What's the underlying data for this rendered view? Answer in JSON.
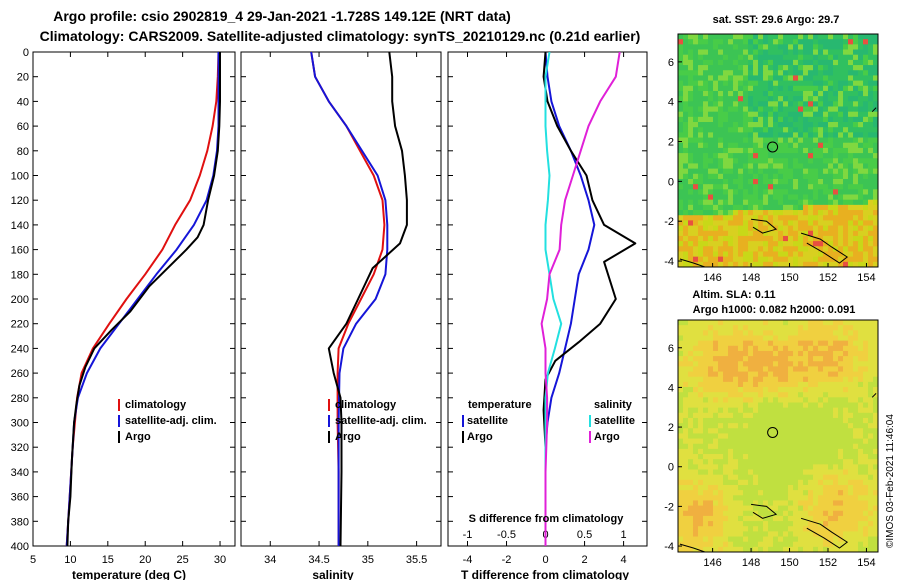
{
  "header": {
    "line1": "Argo profile: csio 2902819_4 29-Jan-2021 -1.728S 149.12E (NRT data)",
    "line2": "Climatology: CARS2009. Satellite-adjusted climatology: synTS_20210129.nc (0.21d earlier)"
  },
  "watermark": "©IMOS 03-Feb-2021 11:46:04",
  "colors": {
    "climatology": "#e01010",
    "satellite": "#1515d8",
    "argo": "#000000",
    "sal_satellite": "#22e0e0",
    "sal_argo": "#e020d8"
  },
  "chart_data": [
    {
      "id": "temperature",
      "type": "line",
      "xlabel": "temperature (deg C)",
      "ylabel": "",
      "xlim": [
        5,
        32
      ],
      "ylim": [
        400,
        0
      ],
      "xticks": [
        5,
        10,
        15,
        20,
        25,
        30
      ],
      "yticks": [
        0,
        20,
        40,
        60,
        80,
        100,
        120,
        140,
        160,
        180,
        200,
        220,
        240,
        260,
        280,
        300,
        320,
        340,
        360,
        380,
        400
      ],
      "legend": [
        "climatology",
        "satellite-adj. clim.",
        "Argo"
      ],
      "series": [
        {
          "name": "climatology",
          "color": "climatology",
          "points": [
            [
              29.8,
              0
            ],
            [
              29.7,
              20
            ],
            [
              29.5,
              40
            ],
            [
              29.0,
              60
            ],
            [
              28.3,
              80
            ],
            [
              27.3,
              100
            ],
            [
              26.0,
              120
            ],
            [
              24.0,
              140
            ],
            [
              22.3,
              160
            ],
            [
              20.0,
              180
            ],
            [
              17.5,
              200
            ],
            [
              15.2,
              220
            ],
            [
              13.0,
              240
            ],
            [
              11.5,
              260
            ],
            [
              10.9,
              280
            ],
            [
              10.6,
              300
            ],
            [
              10.3,
              320
            ],
            [
              10.1,
              340
            ],
            [
              9.9,
              360
            ],
            [
              9.7,
              380
            ],
            [
              9.5,
              400
            ]
          ]
        },
        {
          "name": "satellite-adj. clim.",
          "color": "satellite",
          "points": [
            [
              29.8,
              0
            ],
            [
              29.8,
              20
            ],
            [
              29.8,
              40
            ],
            [
              29.8,
              60
            ],
            [
              29.6,
              80
            ],
            [
              29.1,
              100
            ],
            [
              28.2,
              120
            ],
            [
              26.5,
              140
            ],
            [
              24.2,
              160
            ],
            [
              21.5,
              180
            ],
            [
              19.0,
              200
            ],
            [
              16.5,
              220
            ],
            [
              14.0,
              240
            ],
            [
              12.2,
              260
            ],
            [
              11.0,
              280
            ],
            [
              10.5,
              300
            ],
            [
              10.3,
              320
            ],
            [
              10.1,
              340
            ],
            [
              9.9,
              360
            ],
            [
              9.7,
              380
            ],
            [
              9.5,
              400
            ]
          ]
        },
        {
          "name": "Argo",
          "color": "argo",
          "points": [
            [
              30.0,
              0
            ],
            [
              30.0,
              20
            ],
            [
              30.0,
              40
            ],
            [
              29.9,
              60
            ],
            [
              29.7,
              80
            ],
            [
              29.2,
              100
            ],
            [
              28.4,
              120
            ],
            [
              27.8,
              140
            ],
            [
              27.0,
              150
            ],
            [
              25.5,
              160
            ],
            [
              23.0,
              175
            ],
            [
              20.5,
              190
            ],
            [
              18.0,
              210
            ],
            [
              15.5,
              225
            ],
            [
              13.2,
              240
            ],
            [
              12.0,
              255
            ],
            [
              11.2,
              270
            ],
            [
              10.8,
              285
            ],
            [
              10.5,
              300
            ],
            [
              10.2,
              330
            ],
            [
              10.0,
              360
            ],
            [
              9.7,
              380
            ],
            [
              9.6,
              400
            ]
          ]
        }
      ]
    },
    {
      "id": "salinity",
      "type": "line",
      "xlabel": "salinity",
      "ylabel": "",
      "xlim": [
        33.7,
        35.75
      ],
      "ylim": [
        400,
        0
      ],
      "xticks": [
        34,
        34.5,
        35,
        35.5
      ],
      "xticklabels": [
        "34",
        "34.5",
        "35",
        "35.5"
      ],
      "legend": [
        "climatology",
        "satellite-adj. clim.",
        "Argo"
      ],
      "series": [
        {
          "name": "climatology",
          "color": "climatology",
          "points": [
            [
              34.42,
              0
            ],
            [
              34.46,
              20
            ],
            [
              34.6,
              40
            ],
            [
              34.78,
              60
            ],
            [
              34.92,
              80
            ],
            [
              35.06,
              100
            ],
            [
              35.15,
              120
            ],
            [
              35.17,
              140
            ],
            [
              35.15,
              160
            ],
            [
              35.06,
              180
            ],
            [
              34.93,
              200
            ],
            [
              34.8,
              220
            ],
            [
              34.7,
              240
            ],
            [
              34.69,
              260
            ],
            [
              34.69,
              300
            ],
            [
              34.7,
              340
            ],
            [
              34.7,
              400
            ]
          ]
        },
        {
          "name": "satellite-adj. clim.",
          "color": "satellite",
          "points": [
            [
              34.42,
              0
            ],
            [
              34.46,
              20
            ],
            [
              34.6,
              40
            ],
            [
              34.78,
              60
            ],
            [
              34.94,
              80
            ],
            [
              35.1,
              100
            ],
            [
              35.18,
              120
            ],
            [
              35.2,
              140
            ],
            [
              35.2,
              160
            ],
            [
              35.18,
              180
            ],
            [
              35.08,
              200
            ],
            [
              34.88,
              220
            ],
            [
              34.75,
              240
            ],
            [
              34.71,
              260
            ],
            [
              34.7,
              300
            ],
            [
              34.7,
              340
            ],
            [
              34.7,
              400
            ]
          ]
        },
        {
          "name": "Argo",
          "color": "argo",
          "points": [
            [
              35.22,
              0
            ],
            [
              35.25,
              20
            ],
            [
              35.25,
              40
            ],
            [
              35.28,
              60
            ],
            [
              35.35,
              80
            ],
            [
              35.38,
              100
            ],
            [
              35.4,
              120
            ],
            [
              35.4,
              140
            ],
            [
              35.33,
              155
            ],
            [
              35.05,
              175
            ],
            [
              34.9,
              200
            ],
            [
              34.78,
              220
            ],
            [
              34.6,
              240
            ],
            [
              34.65,
              260
            ],
            [
              34.72,
              280
            ],
            [
              34.73,
              300
            ],
            [
              34.73,
              340
            ],
            [
              34.72,
              400
            ]
          ]
        }
      ]
    },
    {
      "id": "difference",
      "type": "line",
      "xlabel": "T difference from climatology",
      "top_label": "S difference from climatology",
      "ylabel": "",
      "xlim": [
        -5,
        5.2
      ],
      "ylim": [
        400,
        0
      ],
      "xticks": [
        -4,
        -2,
        0,
        2,
        4
      ],
      "xticklabels": [
        "-4",
        "-2",
        "0",
        "2",
        "4"
      ],
      "s_ticks": [
        -1,
        -0.5,
        0,
        0.5,
        1
      ],
      "s_ticklabels": [
        "-1",
        "-0.5",
        "0",
        "0.5",
        "1"
      ],
      "s_xlim": [
        -1.25,
        1.3
      ],
      "legend_temperature_title": "temperature",
      "legend_salinity_title": "salinity",
      "legend_temperature": [
        "satellite",
        "Argo"
      ],
      "legend_salinity": [
        "satellite",
        "Argo"
      ],
      "series": [
        {
          "name": "temperature satellite",
          "color": "satellite",
          "axis": "T",
          "points": [
            [
              0.0,
              0
            ],
            [
              0.1,
              20
            ],
            [
              0.3,
              40
            ],
            [
              0.7,
              60
            ],
            [
              1.3,
              80
            ],
            [
              1.8,
              100
            ],
            [
              2.2,
              120
            ],
            [
              2.5,
              140
            ],
            [
              2.2,
              160
            ],
            [
              1.7,
              180
            ],
            [
              1.5,
              200
            ],
            [
              1.3,
              220
            ],
            [
              1.0,
              240
            ],
            [
              0.7,
              260
            ],
            [
              0.3,
              280
            ],
            [
              0.1,
              300
            ],
            [
              0.0,
              320
            ],
            [
              0.0,
              360
            ],
            [
              0.0,
              400
            ]
          ]
        },
        {
          "name": "temperature Argo",
          "color": "argo",
          "axis": "T",
          "points": [
            [
              0.0,
              0
            ],
            [
              -0.1,
              20
            ],
            [
              0.1,
              40
            ],
            [
              0.6,
              60
            ],
            [
              1.3,
              80
            ],
            [
              2.1,
              100
            ],
            [
              2.4,
              120
            ],
            [
              3.0,
              140
            ],
            [
              4.6,
              155
            ],
            [
              3.0,
              170
            ],
            [
              3.6,
              200
            ],
            [
              2.8,
              220
            ],
            [
              1.7,
              235
            ],
            [
              0.5,
              250
            ],
            [
              0.0,
              265
            ],
            [
              -0.1,
              290
            ],
            [
              0.0,
              320
            ],
            [
              0.0,
              360
            ],
            [
              0.0,
              400
            ]
          ]
        },
        {
          "name": "salinity satellite",
          "color": "sal_satellite",
          "axis": "S",
          "points": [
            [
              0.05,
              0
            ],
            [
              0.0,
              20
            ],
            [
              0.0,
              40
            ],
            [
              0.0,
              60
            ],
            [
              0.02,
              80
            ],
            [
              0.05,
              100
            ],
            [
              0.03,
              120
            ],
            [
              0.0,
              140
            ],
            [
              0.0,
              160
            ],
            [
              0.05,
              180
            ],
            [
              0.1,
              200
            ],
            [
              0.2,
              220
            ],
            [
              0.12,
              240
            ],
            [
              0.03,
              260
            ],
            [
              0.0,
              280
            ],
            [
              0.0,
              300
            ],
            [
              0.0,
              340
            ],
            [
              0.0,
              400
            ]
          ]
        },
        {
          "name": "salinity Argo",
          "color": "sal_argo",
          "axis": "S",
          "points": [
            [
              0.95,
              0
            ],
            [
              0.9,
              20
            ],
            [
              0.7,
              40
            ],
            [
              0.55,
              60
            ],
            [
              0.45,
              80
            ],
            [
              0.35,
              100
            ],
            [
              0.25,
              120
            ],
            [
              0.2,
              140
            ],
            [
              0.18,
              160
            ],
            [
              0.05,
              180
            ],
            [
              0.02,
              200
            ],
            [
              -0.05,
              220
            ],
            [
              0.0,
              240
            ],
            [
              0.0,
              260
            ],
            [
              0.02,
              280
            ],
            [
              0.02,
              300
            ],
            [
              0.0,
              340
            ],
            [
              0.0,
              400
            ]
          ]
        }
      ]
    },
    {
      "id": "sst_map",
      "type": "heatmap",
      "title": "sat. SST: 29.6 Argo: 29.7",
      "xlim": [
        144.2,
        154.6
      ],
      "ylim": [
        -4.3,
        7.4
      ],
      "xticks": [
        146,
        148,
        150,
        152,
        154
      ],
      "yticks": [
        -4,
        -2,
        0,
        2,
        4,
        6
      ],
      "marker": [
        149.12,
        1.728
      ]
    },
    {
      "id": "sla_map",
      "type": "heatmap",
      "title1": "Altim. SLA: 0.11",
      "title2": "Argo h1000: 0.082 h2000: 0.091",
      "xlim": [
        144.2,
        154.6
      ],
      "ylim": [
        -4.3,
        7.4
      ],
      "xticks": [
        146,
        148,
        150,
        152,
        154
      ],
      "yticks": [
        -4,
        -2,
        0,
        2,
        4,
        6
      ],
      "marker": [
        149.12,
        1.728
      ]
    }
  ]
}
